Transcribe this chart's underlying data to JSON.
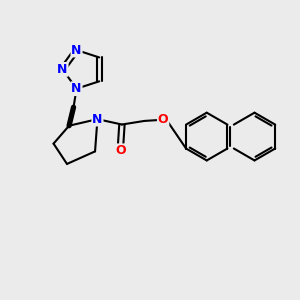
{
  "bg_color": "#ebebeb",
  "bond_color": "#000000",
  "n_color": "#0000ff",
  "o_color": "#ff0000",
  "lw": 1.5,
  "fs": 9,
  "dpi": 100,
  "xlim": [
    0,
    10
  ],
  "ylim": [
    0,
    10
  ]
}
